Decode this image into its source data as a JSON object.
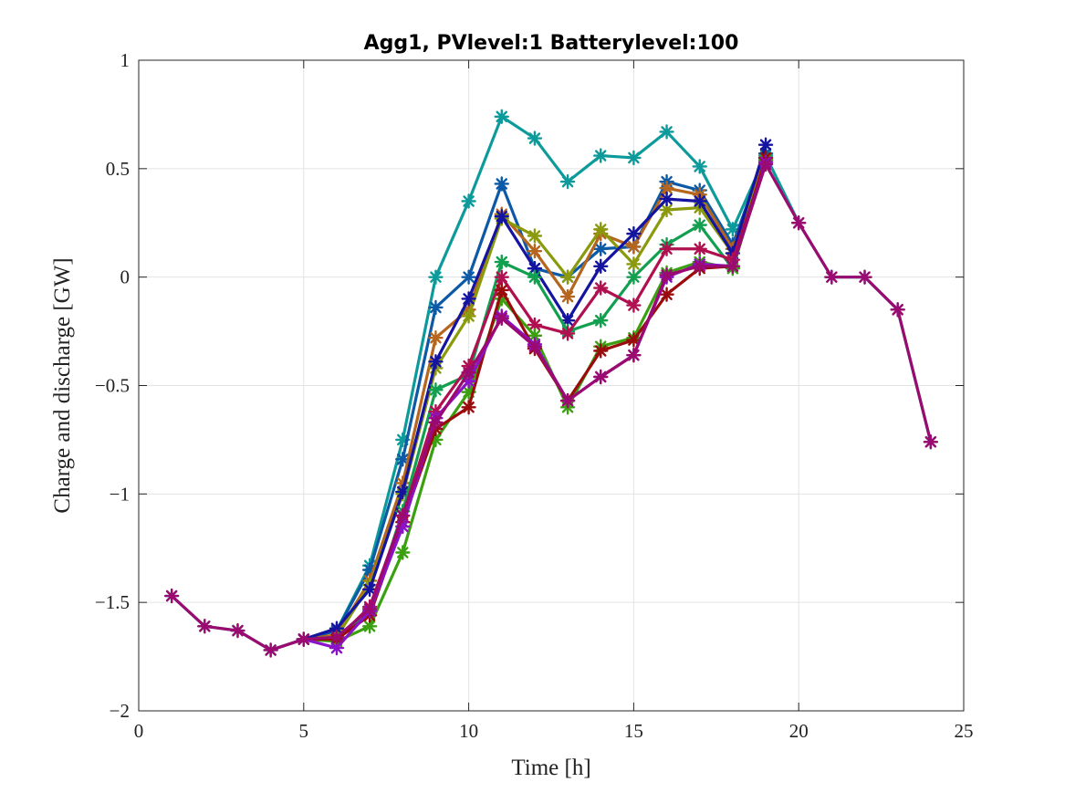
{
  "chart_data": {
    "type": "line",
    "title": "Agg1, PVlevel:1 Batterylevel:100",
    "xlabel": "Time [h]",
    "ylabel": "Charge and discharge [GW]",
    "xlim": [
      0,
      25
    ],
    "ylim": [
      -2,
      1
    ],
    "xticks": [
      0,
      5,
      10,
      15,
      20,
      25
    ],
    "yticks": [
      -2,
      -1.5,
      -1,
      -0.5,
      0,
      0.5,
      1
    ],
    "xtick_labels": [
      "0",
      "5",
      "10",
      "15",
      "20",
      "25"
    ],
    "ytick_labels": [
      "−2",
      "−1.5",
      "−1",
      "−0.5",
      "0",
      "0.5",
      "1"
    ],
    "grid": true,
    "marker": "asterisk",
    "series": [
      {
        "color": "#0c9a9a",
        "points": [
          [
            1,
            -1.47
          ],
          [
            2,
            -1.61
          ],
          [
            3,
            -1.63
          ],
          [
            4,
            -1.72
          ],
          [
            5,
            -1.67
          ],
          [
            6,
            -1.63
          ],
          [
            7,
            -1.33
          ],
          [
            8,
            -0.75
          ],
          [
            9,
            0.0
          ],
          [
            10,
            0.35
          ],
          [
            11,
            0.74
          ],
          [
            12,
            0.64
          ],
          [
            13,
            0.44
          ],
          [
            14,
            0.56
          ],
          [
            15,
            0.55
          ],
          [
            16,
            0.67
          ],
          [
            17,
            0.51
          ],
          [
            18,
            0.22
          ],
          [
            19,
            0.56
          ],
          [
            20,
            0.25
          ],
          [
            21,
            0.0
          ],
          [
            22,
            0.0
          ],
          [
            23,
            -0.15
          ],
          [
            24,
            -0.76
          ]
        ]
      },
      {
        "color": "#0c59a6",
        "points": [
          [
            5,
            -1.67
          ],
          [
            6,
            -1.63
          ],
          [
            7,
            -1.35
          ],
          [
            8,
            -0.84
          ],
          [
            9,
            -0.14
          ],
          [
            10,
            0.0
          ],
          [
            11,
            0.43
          ],
          [
            12,
            0.04
          ],
          [
            13,
            0.0
          ],
          [
            14,
            0.13
          ],
          [
            15,
            0.14
          ],
          [
            16,
            0.44
          ],
          [
            17,
            0.4
          ],
          [
            18,
            0.15
          ],
          [
            19,
            0.57
          ]
        ]
      },
      {
        "color": "#b5651d",
        "points": [
          [
            5,
            -1.67
          ],
          [
            6,
            -1.65
          ],
          [
            7,
            -1.4
          ],
          [
            8,
            -0.95
          ],
          [
            9,
            -0.28
          ],
          [
            10,
            -0.15
          ],
          [
            11,
            0.29
          ],
          [
            12,
            0.12
          ],
          [
            13,
            -0.09
          ],
          [
            14,
            0.2
          ],
          [
            15,
            0.14
          ],
          [
            16,
            0.41
          ],
          [
            17,
            0.38
          ],
          [
            18,
            0.13
          ],
          [
            19,
            0.55
          ]
        ]
      },
      {
        "color": "#8a9a0c",
        "points": [
          [
            5,
            -1.67
          ],
          [
            6,
            -1.66
          ],
          [
            7,
            -1.42
          ],
          [
            8,
            -1.0
          ],
          [
            9,
            -0.42
          ],
          [
            10,
            -0.18
          ],
          [
            11,
            0.27
          ],
          [
            12,
            0.19
          ],
          [
            13,
            0.0
          ],
          [
            14,
            0.22
          ],
          [
            15,
            0.06
          ],
          [
            16,
            0.31
          ],
          [
            17,
            0.32
          ],
          [
            18,
            0.11
          ],
          [
            19,
            0.54
          ]
        ]
      },
      {
        "color": "#1414a0",
        "points": [
          [
            5,
            -1.67
          ],
          [
            6,
            -1.62
          ],
          [
            7,
            -1.44
          ],
          [
            8,
            -0.99
          ],
          [
            9,
            -0.39
          ],
          [
            10,
            -0.1
          ],
          [
            11,
            0.28
          ],
          [
            12,
            0.04
          ],
          [
            13,
            -0.2
          ],
          [
            14,
            0.05
          ],
          [
            15,
            0.2
          ],
          [
            16,
            0.36
          ],
          [
            17,
            0.35
          ],
          [
            18,
            0.11
          ],
          [
            19,
            0.61
          ]
        ]
      },
      {
        "color": "#12a050",
        "points": [
          [
            5,
            -1.67
          ],
          [
            6,
            -1.66
          ],
          [
            7,
            -1.55
          ],
          [
            8,
            -1.08
          ],
          [
            9,
            -0.52
          ],
          [
            10,
            -0.45
          ],
          [
            11,
            0.07
          ],
          [
            12,
            0.0
          ],
          [
            13,
            -0.25
          ],
          [
            14,
            -0.2
          ],
          [
            15,
            0.0
          ],
          [
            16,
            0.15
          ],
          [
            17,
            0.24
          ],
          [
            18,
            0.04
          ],
          [
            19,
            0.54
          ]
        ]
      },
      {
        "color": "#b01050",
        "points": [
          [
            5,
            -1.67
          ],
          [
            6,
            -1.67
          ],
          [
            7,
            -1.52
          ],
          [
            8,
            -1.1
          ],
          [
            9,
            -0.62
          ],
          [
            10,
            -0.41
          ],
          [
            11,
            0.0
          ],
          [
            12,
            -0.22
          ],
          [
            13,
            -0.26
          ],
          [
            14,
            -0.05
          ],
          [
            15,
            -0.13
          ],
          [
            16,
            0.13
          ],
          [
            17,
            0.13
          ],
          [
            18,
            0.08
          ],
          [
            19,
            0.53
          ]
        ]
      },
      {
        "color": "#3aa010",
        "points": [
          [
            5,
            -1.67
          ],
          [
            6,
            -1.68
          ],
          [
            7,
            -1.61
          ],
          [
            8,
            -1.27
          ],
          [
            9,
            -0.75
          ],
          [
            10,
            -0.53
          ],
          [
            11,
            -0.1
          ],
          [
            12,
            -0.27
          ],
          [
            13,
            -0.6
          ],
          [
            14,
            -0.32
          ],
          [
            15,
            -0.28
          ],
          [
            16,
            0.02
          ],
          [
            17,
            0.07
          ],
          [
            18,
            0.04
          ],
          [
            19,
            0.54
          ]
        ]
      },
      {
        "color": "#9a0c0c",
        "points": [
          [
            5,
            -1.67
          ],
          [
            6,
            -1.67
          ],
          [
            7,
            -1.56
          ],
          [
            8,
            -1.13
          ],
          [
            9,
            -0.7
          ],
          [
            10,
            -0.6
          ],
          [
            11,
            -0.06
          ],
          [
            12,
            -0.33
          ],
          [
            13,
            -0.57
          ],
          [
            14,
            -0.34
          ],
          [
            15,
            -0.29
          ],
          [
            16,
            -0.08
          ],
          [
            17,
            0.04
          ],
          [
            18,
            0.05
          ],
          [
            19,
            0.55
          ]
        ]
      },
      {
        "color": "#8a12c8",
        "points": [
          [
            5,
            -1.67
          ],
          [
            6,
            -1.71
          ],
          [
            7,
            -1.54
          ],
          [
            8,
            -1.15
          ],
          [
            9,
            -0.65
          ],
          [
            10,
            -0.48
          ],
          [
            11,
            -0.18
          ],
          [
            12,
            -0.31
          ],
          [
            13,
            -0.57
          ],
          [
            14,
            -0.46
          ],
          [
            15,
            -0.36
          ],
          [
            16,
            0.0
          ],
          [
            17,
            0.06
          ],
          [
            18,
            0.05
          ],
          [
            19,
            0.53
          ]
        ]
      },
      {
        "color": "#9b0a70",
        "points": [
          [
            1,
            -1.47
          ],
          [
            2,
            -1.61
          ],
          [
            3,
            -1.63
          ],
          [
            4,
            -1.72
          ],
          [
            5,
            -1.67
          ],
          [
            6,
            -1.66
          ],
          [
            7,
            -1.53
          ],
          [
            8,
            -1.1
          ],
          [
            9,
            -0.67
          ],
          [
            10,
            -0.44
          ],
          [
            11,
            -0.19
          ],
          [
            12,
            -0.32
          ],
          [
            13,
            -0.57
          ],
          [
            14,
            -0.46
          ],
          [
            15,
            -0.36
          ],
          [
            16,
            0.01
          ],
          [
            17,
            0.05
          ],
          [
            18,
            0.05
          ],
          [
            19,
            0.52
          ],
          [
            20,
            0.25
          ],
          [
            21,
            0.0
          ],
          [
            22,
            0.0
          ],
          [
            23,
            -0.15
          ],
          [
            24,
            -0.76
          ]
        ]
      }
    ]
  }
}
